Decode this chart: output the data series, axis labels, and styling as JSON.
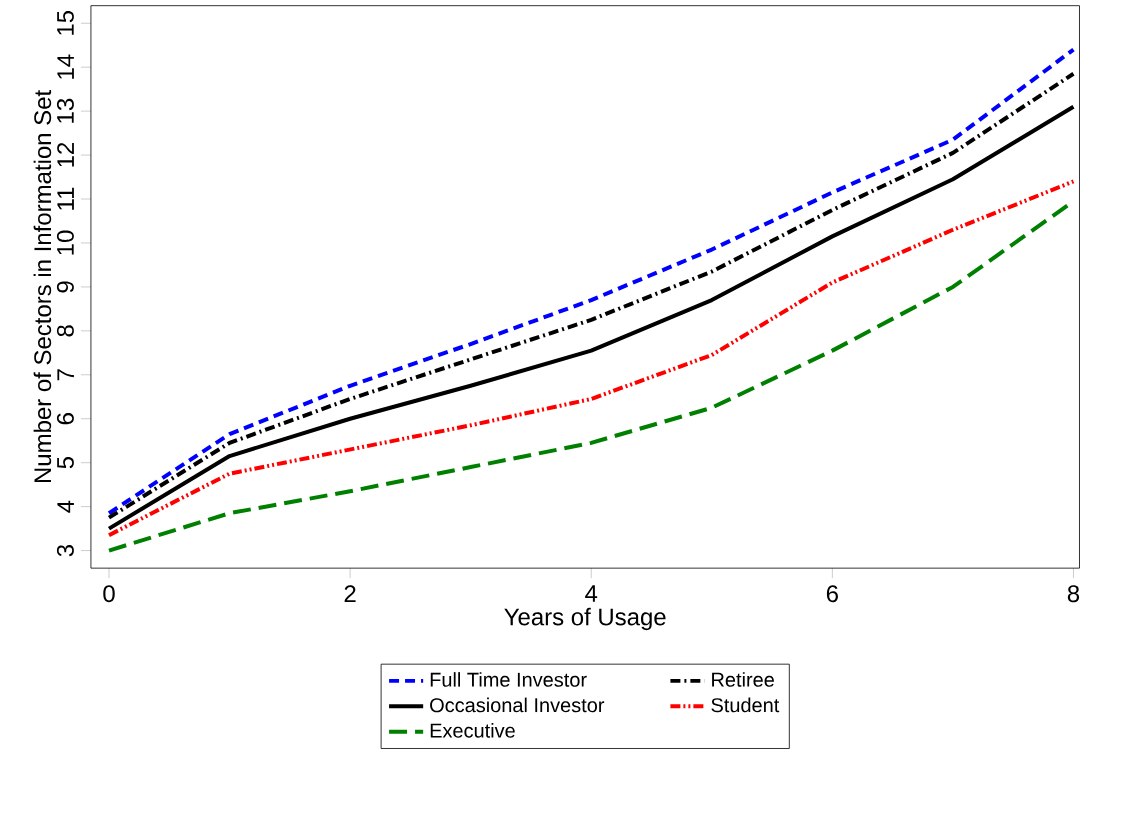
{
  "chart_data": {
    "type": "line",
    "xlabel": "Years of Usage",
    "ylabel": "Number of Sectors in Information Set",
    "x": [
      0,
      1,
      2,
      3,
      4,
      5,
      6,
      7,
      8
    ],
    "xlim": [
      -0.15,
      8.05
    ],
    "ylim": [
      2.6,
      15.4
    ],
    "xticks": [
      0,
      2,
      4,
      6,
      8
    ],
    "yticks": [
      3,
      4,
      5,
      6,
      7,
      8,
      9,
      10,
      11,
      12,
      13,
      14,
      15
    ],
    "legend": "bottom",
    "grid": false,
    "series": [
      {
        "name": "Full Time Investor",
        "color": "#0000ff",
        "line_style": "dashed",
        "values": [
          3.85,
          5.65,
          6.75,
          7.7,
          8.7,
          9.85,
          11.15,
          12.35,
          14.4
        ]
      },
      {
        "name": "Retiree",
        "color": "#000000",
        "line_style": "dashdot",
        "values": [
          3.75,
          5.45,
          6.45,
          7.35,
          8.25,
          9.35,
          10.75,
          12.05,
          13.85
        ]
      },
      {
        "name": "Occasional Investor",
        "color": "#000000",
        "line_style": "solid",
        "values": [
          3.5,
          5.15,
          6.0,
          6.75,
          7.55,
          8.7,
          10.15,
          11.45,
          13.1
        ]
      },
      {
        "name": "Student",
        "color": "#ff0000",
        "line_style": "dashdotdot",
        "values": [
          3.35,
          4.75,
          5.3,
          5.85,
          6.45,
          7.45,
          9.1,
          10.3,
          11.4
        ]
      },
      {
        "name": "Executive",
        "color": "#008000",
        "line_style": "longdash",
        "values": [
          3.0,
          3.85,
          4.35,
          4.9,
          5.45,
          6.25,
          7.55,
          9.0,
          10.95
        ]
      }
    ]
  }
}
